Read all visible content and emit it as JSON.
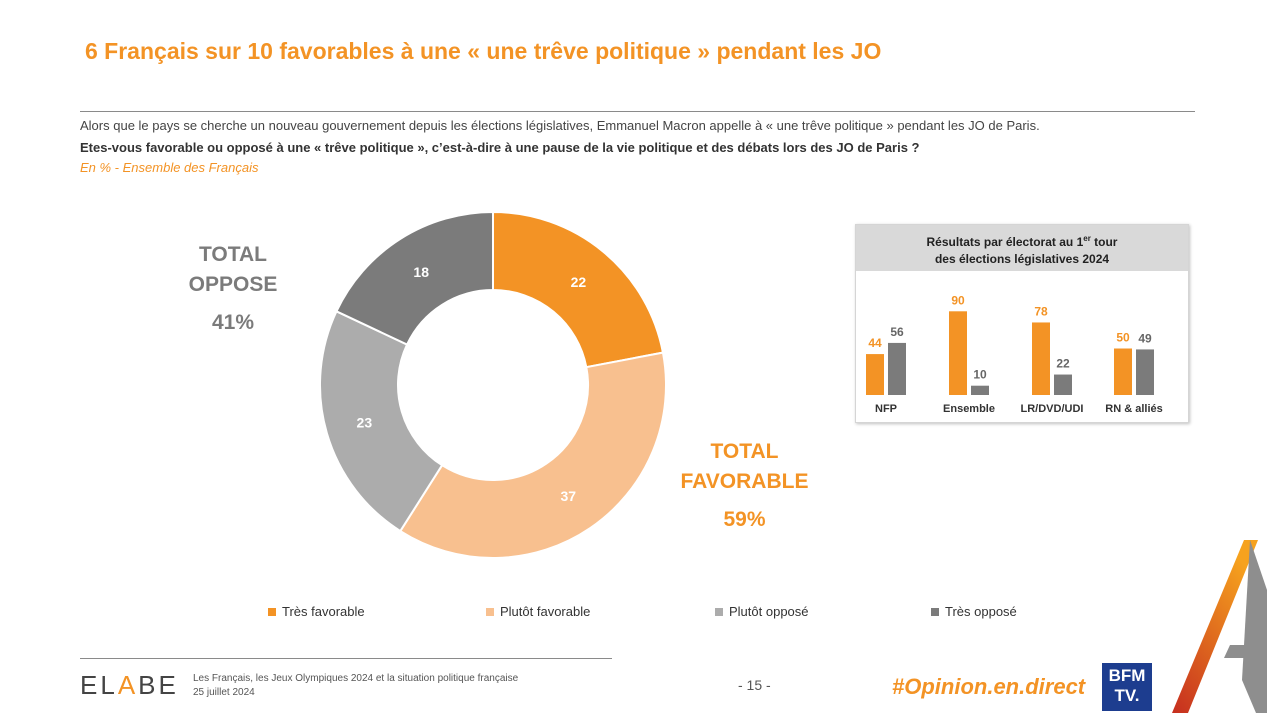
{
  "header": {
    "title": "6 Français sur 10 favorables à une « une trêve politique » pendant les JO",
    "intro": "Alors que le pays se cherche un nouveau gouvernement depuis les élections législatives, Emmanuel Macron appelle à « une trêve politique » pendant les JO de Paris.",
    "question": "Etes-vous favorable ou opposé à une « trêve politique », c’est-à-dire à une pause de la vie politique et des débats lors des JO de Paris ?",
    "base": "En % - Ensemble des Français"
  },
  "totals": {
    "oppose_label_1": "TOTAL",
    "oppose_label_2": "OPPOSE",
    "oppose_value": "41%",
    "favorable_label_1": "TOTAL",
    "favorable_label_2": "FAVORABLE",
    "favorable_value": "59%"
  },
  "colors": {
    "tres_favorable": "#f39325",
    "plutot_favorable": "#f8c08f",
    "plutot_oppose": "#acacac",
    "tres_oppose": "#7b7b7b",
    "accent": "#f39325"
  },
  "chart_data": [
    {
      "type": "pie",
      "title": "",
      "categories": [
        "Très favorable",
        "Plutôt favorable",
        "Plutôt opposé",
        "Très opposé"
      ],
      "values": [
        22,
        37,
        23,
        18
      ],
      "legend": "bottom"
    },
    {
      "type": "bar",
      "title_line1": "Résultats par électorat au 1",
      "title_sup": "er",
      "title_line1_end": " tour",
      "title_line2": "des élections législatives 2024",
      "categories": [
        "NFP",
        "Ensemble",
        "LR/DVD/UDI",
        "RN & alliés"
      ],
      "series": [
        {
          "name": "Total favorable",
          "values": [
            44,
            90,
            78,
            50
          ]
        },
        {
          "name": "Total opposé",
          "values": [
            56,
            10,
            22,
            49
          ]
        }
      ],
      "ylim": [
        0,
        100
      ]
    }
  ],
  "footer": {
    "brand_1": "EL",
    "brand_2": "A",
    "brand_3": "BE",
    "study": "Les Français, les Jeux Olympiques 2024 et la situation politique française",
    "date": "25 juillet 2024",
    "page": "- 15 -",
    "hashtag": "#Opinion.en.direct",
    "tv_1": "BFM",
    "tv_2": "TV."
  }
}
